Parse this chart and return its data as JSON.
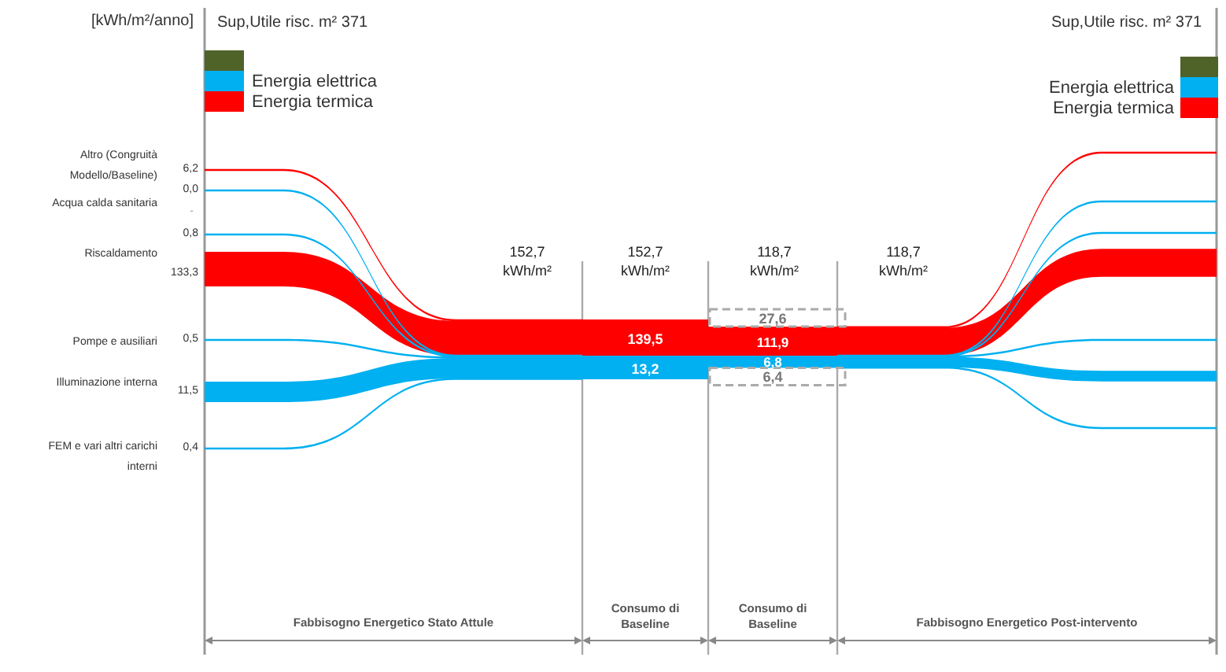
{
  "chart_data": {
    "type": "other",
    "ylabel": "[kWh/m²/anno]",
    "categories": [
      "Altro (Congruità Modello/Baseline)",
      "Acqua calda sanitaria",
      "Riscaldamento",
      "Pompe e ausiliari",
      "Illuminazione interna",
      "FEM e vari altri carichi interni"
    ],
    "series": [
      {
        "color": "#4f6228",
        "values": [
          null,
          null,
          null,
          null,
          null,
          null
        ]
      },
      {
        "name": "Energia elettrica",
        "color": "#00b0f0",
        "values": [
          null,
          0.0,
          0.8,
          0.5,
          11.5,
          0.4
        ],
        "value_labels": [
          null,
          "0,0",
          "0,8",
          "0,5",
          "11,5",
          "0,4"
        ]
      },
      {
        "name": "Energia termica",
        "color": "#ff0000",
        "values": [
          6.2,
          null,
          133.3,
          null,
          null,
          null
        ],
        "value_labels": [
          "6,2",
          null,
          "133,3",
          null,
          null,
          null
        ]
      }
    ],
    "totals": [
      "152,7 kWh/m²",
      "152,7 kWh/m²",
      "118,7 kWh/m²",
      "118,7 kWh/m²"
    ],
    "annotations": [
      "Sup,Utile risc. m² 371",
      "Sup,Utile risc. m² 371",
      "139,5",
      "13,2",
      "27,6",
      "111,9",
      "6,8",
      "6,4",
      "Fabbisogno Energetico Stato Attule",
      "Consumo di Baseline",
      "Consumo di Baseline",
      "Fabbisogno Energetico Post-intervento",
      "-"
    ],
    "legend": "top left"
  }
}
